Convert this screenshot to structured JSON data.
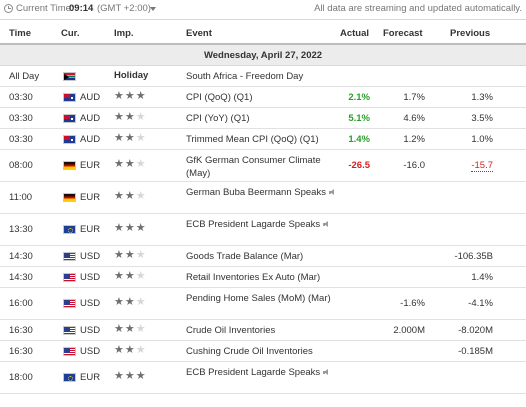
{
  "topbar": {
    "current_time_label": "Current Time:",
    "current_time": "09:14",
    "timezone": "(GMT +2:00)",
    "streaming_note": "All data are streaming and updated automatically."
  },
  "headers": {
    "time": "Time",
    "cur": "Cur.",
    "imp": "Imp.",
    "event": "Event",
    "actual": "Actual",
    "forecast": "Forecast",
    "previous": "Previous"
  },
  "date_label": "Wednesday, April 27, 2022",
  "colors": {
    "positive": "#2aa02a",
    "negative": "#d91e1e",
    "date_band": "#ececec"
  },
  "rows": [
    {
      "time": "All Day",
      "flag": "za-flag-icon",
      "cur": "",
      "impact_label": "Holiday",
      "event": "South Africa - Freedom Day",
      "actual": "",
      "forecast": "",
      "previous": ""
    },
    {
      "time": "03:30",
      "flag": "au-flag-icon",
      "cur": "AUD",
      "stars": 3,
      "event": "CPI (QoQ) (Q1)",
      "actual": "2.1%",
      "actual_status": "positive",
      "forecast": "1.7%",
      "previous": "1.3%"
    },
    {
      "time": "03:30",
      "flag": "au-flag-icon",
      "cur": "AUD",
      "stars": 2,
      "event": "CPI (YoY) (Q1)",
      "actual": "5.1%",
      "actual_status": "positive",
      "forecast": "4.6%",
      "previous": "3.5%"
    },
    {
      "time": "03:30",
      "flag": "au-flag-icon",
      "cur": "AUD",
      "stars": 2,
      "event": "Trimmed Mean CPI (QoQ) (Q1)",
      "actual": "1.4%",
      "actual_status": "positive",
      "forecast": "1.2%",
      "previous": "1.0%"
    },
    {
      "time": "08:00",
      "flag": "de-flag-icon",
      "cur": "EUR",
      "stars": 2,
      "event": "GfK German Consumer Climate (May)",
      "actual": "-26.5",
      "actual_status": "negative",
      "forecast": "-16.0",
      "previous": "-15.7",
      "previous_status": "negative-revised"
    },
    {
      "time": "11:00",
      "flag": "de-flag-icon",
      "cur": "EUR",
      "stars": 2,
      "event": "German Buba Beermann Speaks",
      "speech": true,
      "actual": "",
      "forecast": "",
      "previous": ""
    },
    {
      "time": "13:30",
      "flag": "eu-flag-icon",
      "cur": "EUR",
      "stars": 3,
      "event": "ECB President Lagarde Speaks",
      "speech": true,
      "actual": "",
      "forecast": "",
      "previous": ""
    },
    {
      "time": "14:30",
      "flag": "us-flag-icon",
      "cur": "USD",
      "stars": 2,
      "event": "Goods Trade Balance (Mar)",
      "actual": "",
      "forecast": "",
      "previous": "-106.35B"
    },
    {
      "time": "14:30",
      "flag": "us-flag-icon",
      "cur": "USD",
      "stars": 2,
      "event": "Retail Inventories Ex Auto (Mar)",
      "actual": "",
      "forecast": "",
      "previous": "1.4%"
    },
    {
      "time": "16:00",
      "flag": "us-flag-icon",
      "cur": "USD",
      "stars": 2,
      "event": "Pending Home Sales (MoM) (Mar)",
      "actual": "",
      "forecast": "-1.6%",
      "previous": "-4.1%"
    },
    {
      "time": "16:30",
      "flag": "us-flag-icon",
      "cur": "USD",
      "stars": 2,
      "event": "Crude Oil Inventories",
      "actual": "",
      "forecast": "2.000M",
      "previous": "-8.020M"
    },
    {
      "time": "16:30",
      "flag": "us-flag-icon",
      "cur": "USD",
      "stars": 2,
      "event": "Cushing Crude Oil Inventories",
      "actual": "",
      "forecast": "",
      "previous": "-0.185M"
    },
    {
      "time": "18:00",
      "flag": "eu-flag-icon",
      "cur": "EUR",
      "stars": 3,
      "event": "ECB President Lagarde Speaks",
      "speech": true,
      "actual": "",
      "forecast": "",
      "previous": ""
    }
  ]
}
